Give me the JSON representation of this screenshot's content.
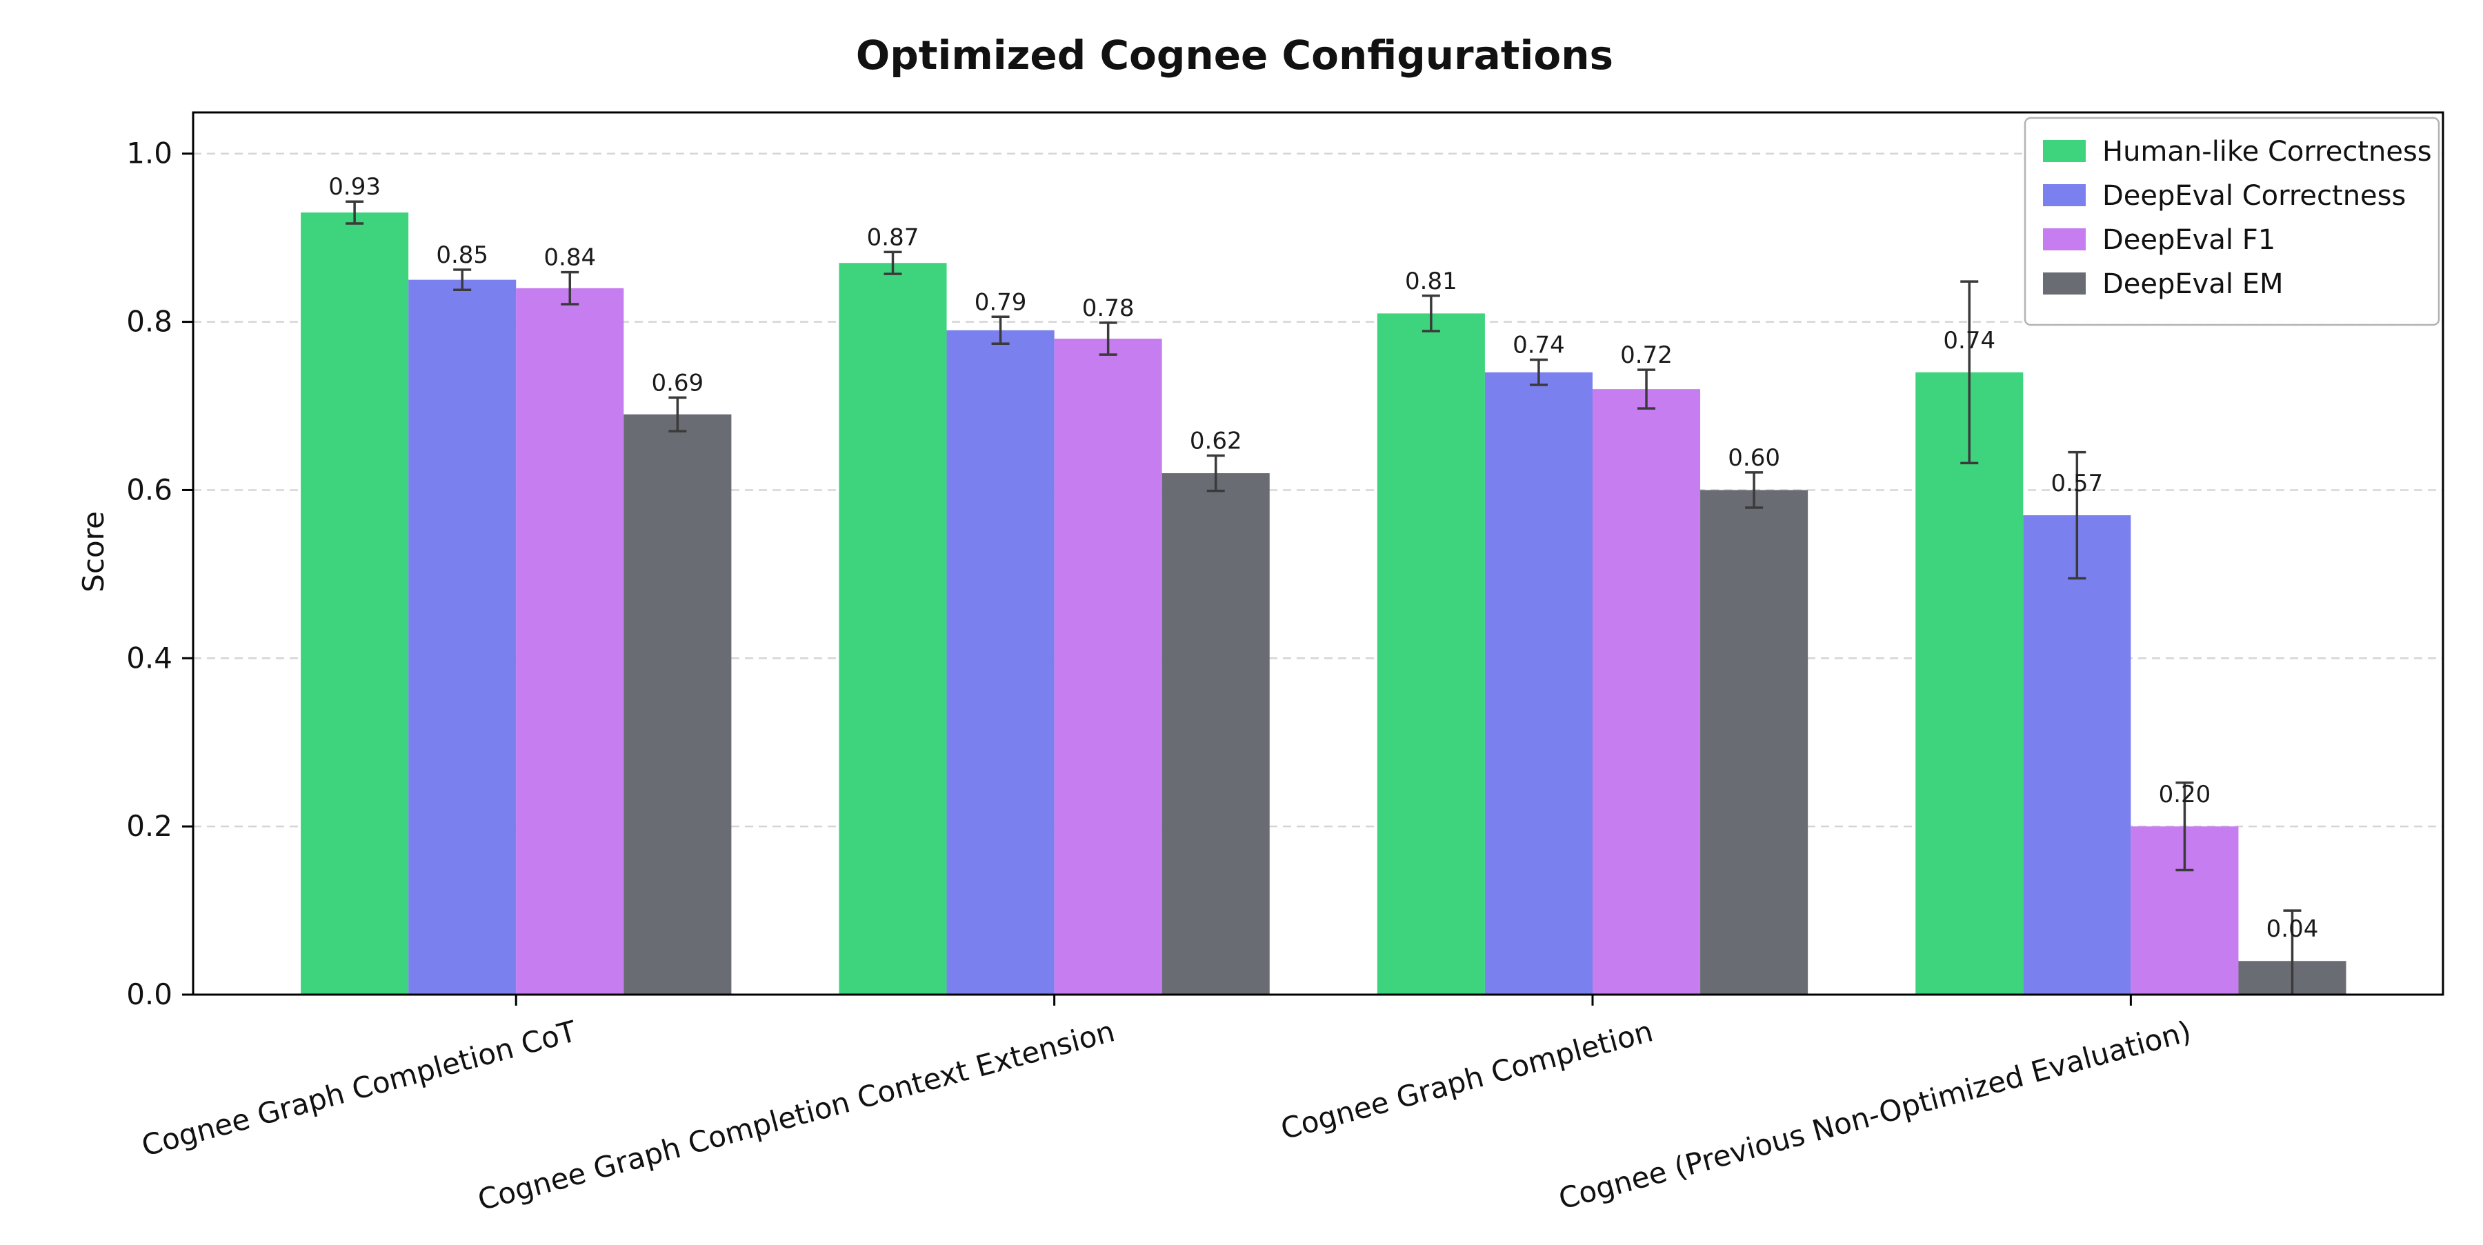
{
  "chart_data": {
    "type": "bar",
    "title": "Optimized Cognee Configurations",
    "ylabel": "Score",
    "xlabel": "",
    "ylim": [
      0.0,
      1.049
    ],
    "yticks": [
      0.0,
      0.2,
      0.4,
      0.6,
      0.8,
      1.0
    ],
    "grid": "horizontal-dashed",
    "legend_position": "upper right",
    "categories": [
      "Cognee Graph Completion CoT",
      "Cognee Graph Completion Context Extension",
      "Cognee Graph Completion",
      "Cognee (Previous Non-Optimized Evaluation)"
    ],
    "series": [
      {
        "name": "Human-like Correctness",
        "color": "#3ed47d",
        "values": [
          0.93,
          0.87,
          0.81,
          0.74
        ],
        "errors": [
          0.013,
          0.013,
          0.021,
          0.108
        ]
      },
      {
        "name": "DeepEval Correctness",
        "color": "#7b80ef",
        "values": [
          0.85,
          0.79,
          0.74,
          0.57
        ],
        "errors": [
          0.012,
          0.016,
          0.015,
          0.075
        ]
      },
      {
        "name": "DeepEval F1",
        "color": "#c67df0",
        "values": [
          0.84,
          0.78,
          0.72,
          0.2
        ],
        "errors": [
          0.019,
          0.019,
          0.023,
          0.052
        ]
      },
      {
        "name": "DeepEval EM",
        "color": "#6a6c74",
        "values": [
          0.69,
          0.62,
          0.6,
          0.04
        ],
        "errors": [
          0.02,
          0.021,
          0.021,
          0.06
        ]
      }
    ],
    "value_label_format": "0.00",
    "colors": {
      "grid": "#d5d5d5",
      "frame": "#000000",
      "error_bar": "#3a3a3a",
      "legend_border": "#b3b3b3",
      "text": "#111111"
    }
  }
}
